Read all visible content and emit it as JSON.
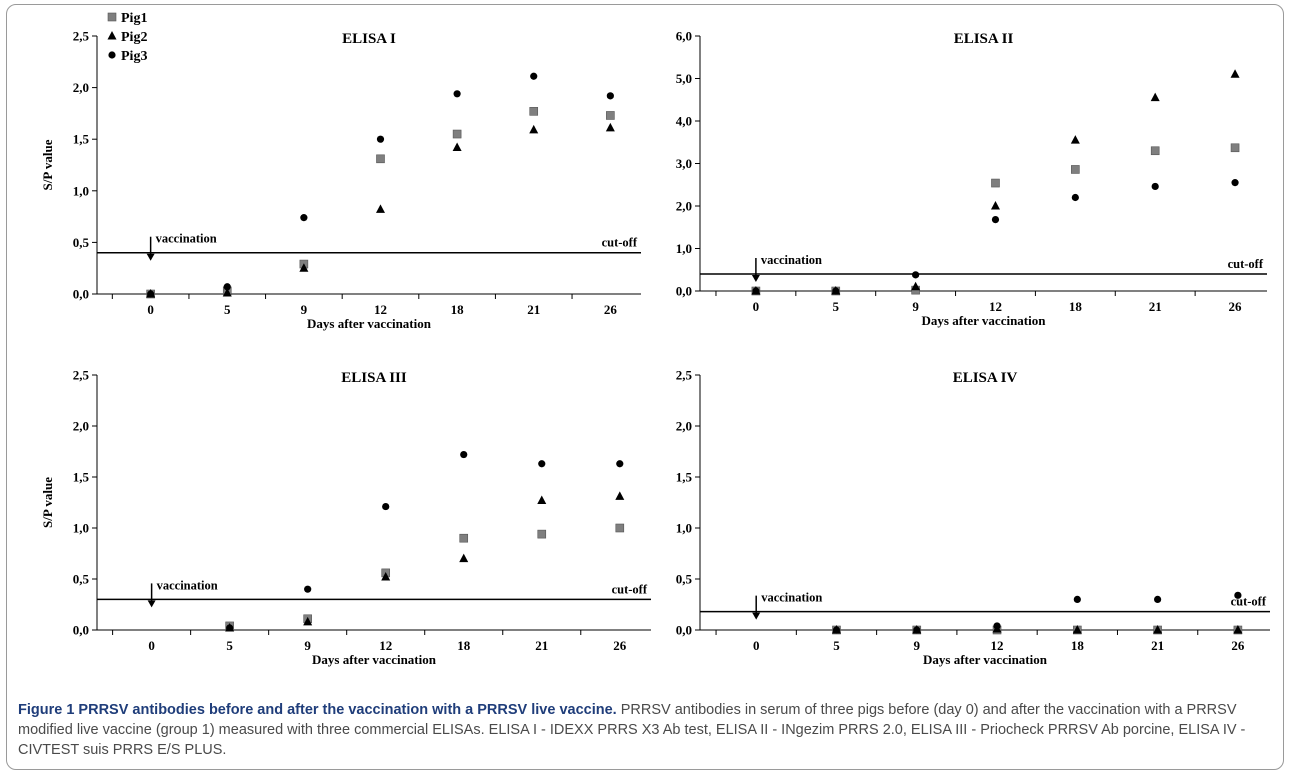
{
  "caption": {
    "title": "Figure 1 PRRSV antibodies before and after the vaccination with a PRRSV live vaccine.",
    "body": "PRRSV antibodies in serum of three pigs before (day 0) and after the vaccination with a PRRSV modified live vaccine (group 1) measured with three commercial ELISAs. ELISA I - IDEXX PRRS X3 Ab test, ELISA II - INgezim PRRS 2.0, ELISA III - Priocheck PRRSV Ab porcine, ELISA IV - CIVTEST suis PRRS E/S PLUS."
  },
  "legend": [
    {
      "name": "Pig1",
      "marker": "square",
      "color": "#7f7f7f"
    },
    {
      "name": "Pig2",
      "marker": "triangle",
      "color": "#000000"
    },
    {
      "name": "Pig3",
      "marker": "circle",
      "color": "#000000"
    }
  ],
  "chart_data": [
    {
      "type": "scatter",
      "title": "ELISA I",
      "xlabel": "Days after vaccination",
      "ylabel": "S/P value",
      "categories": [
        "0",
        "5",
        "9",
        "12",
        "18",
        "21",
        "26"
      ],
      "ylim": [
        0,
        2.5
      ],
      "yticks": [
        "0,0",
        "0,5",
        "1,0",
        "1,5",
        "2,0",
        "2,5"
      ],
      "cutoff": 0.4,
      "cutoff_label": "cut-off",
      "vaccination_label": "vaccination",
      "series": [
        {
          "name": "Pig1",
          "values": [
            0,
            0.03,
            0.29,
            1.31,
            1.55,
            1.77,
            1.73
          ]
        },
        {
          "name": "Pig2",
          "values": [
            0,
            0.01,
            0.25,
            0.82,
            1.42,
            1.59,
            1.61
          ]
        },
        {
          "name": "Pig3",
          "values": [
            0,
            0.07,
            0.74,
            1.5,
            1.94,
            2.11,
            1.92
          ]
        }
      ]
    },
    {
      "type": "scatter",
      "title": "ELISA II",
      "xlabel": "Days after vaccination",
      "ylabel": "",
      "categories": [
        "0",
        "5",
        "9",
        "12",
        "18",
        "21",
        "26"
      ],
      "ylim": [
        0,
        6
      ],
      "yticks": [
        "0,0",
        "1,0",
        "2,0",
        "3,0",
        "4,0",
        "5,0",
        "6,0"
      ],
      "cutoff": 0.4,
      "cutoff_label": "cut-off",
      "vaccination_label": "vaccination",
      "series": [
        {
          "name": "Pig1",
          "values": [
            0,
            0,
            0.02,
            2.54,
            2.86,
            3.3,
            3.37
          ]
        },
        {
          "name": "Pig2",
          "values": [
            0,
            0,
            0.1,
            2.0,
            3.55,
            4.55,
            5.1
          ]
        },
        {
          "name": "Pig3",
          "values": [
            0,
            0,
            0.38,
            1.68,
            2.2,
            2.46,
            2.55
          ]
        }
      ]
    },
    {
      "type": "scatter",
      "title": "ELISA III",
      "xlabel": "Days after vaccination",
      "ylabel": "S/P value",
      "categories": [
        "0",
        "5",
        "9",
        "12",
        "18",
        "21",
        "26"
      ],
      "ylim": [
        0,
        2.5
      ],
      "yticks": [
        "0,0",
        "0,5",
        "1,0",
        "1,5",
        "2,0",
        "2,5"
      ],
      "cutoff": 0.3,
      "cutoff_label": "cut-off",
      "vaccination_label": "vaccination",
      "series": [
        {
          "name": "Pig1",
          "values": [
            null,
            0.04,
            0.11,
            0.56,
            0.9,
            0.94,
            1.0
          ]
        },
        {
          "name": "Pig2",
          "values": [
            null,
            0.02,
            0.08,
            0.52,
            0.7,
            1.27,
            1.31
          ]
        },
        {
          "name": "Pig3",
          "values": [
            null,
            0.02,
            0.4,
            1.21,
            1.72,
            1.63,
            1.63
          ]
        }
      ]
    },
    {
      "type": "scatter",
      "title": "ELISA IV",
      "xlabel": "Days after vaccination",
      "ylabel": "",
      "categories": [
        "0",
        "5",
        "9",
        "12",
        "18",
        "21",
        "26"
      ],
      "ylim": [
        0,
        2.5
      ],
      "yticks": [
        "0,0",
        "0,5",
        "1,0",
        "1,5",
        "2,0",
        "2,5"
      ],
      "cutoff": 0.18,
      "cutoff_label": "cut-off",
      "vaccination_label": "vaccination",
      "series": [
        {
          "name": "Pig1",
          "values": [
            null,
            0,
            0,
            0,
            0,
            0,
            0
          ]
        },
        {
          "name": "Pig2",
          "values": [
            null,
            0,
            0,
            0.01,
            0,
            0,
            0
          ]
        },
        {
          "name": "Pig3",
          "values": [
            null,
            0,
            0,
            0.04,
            0.3,
            0.3,
            0.34
          ]
        }
      ]
    }
  ]
}
